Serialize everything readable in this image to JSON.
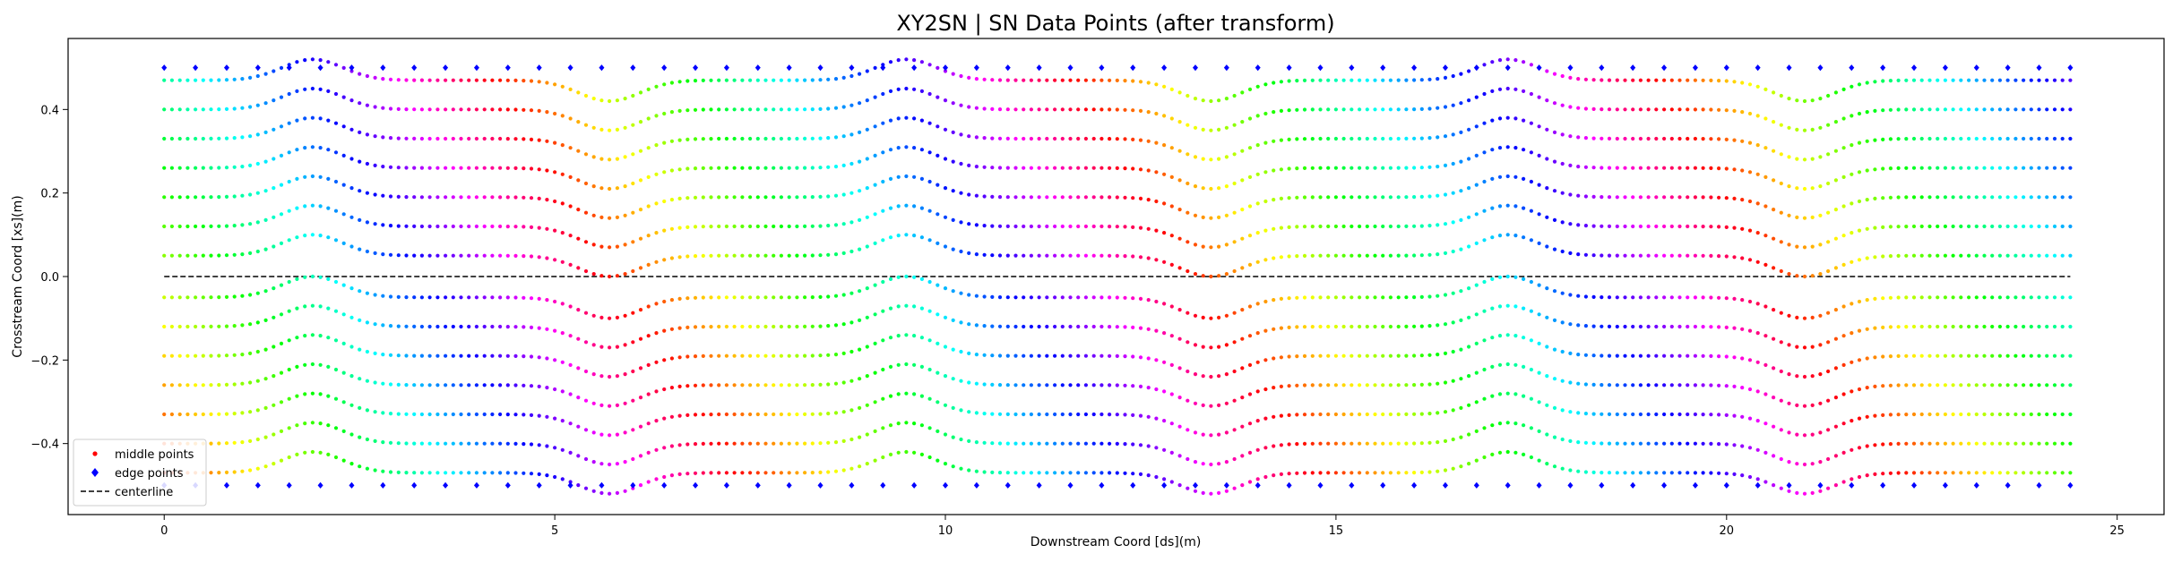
{
  "chart_data": {
    "type": "scatter",
    "title": "XY2SN | SN Data Points (after transform)",
    "xlabel": "Downstream Coord [ds](m)",
    "ylabel": "Crosstream Coord [xs](m)",
    "xlim": [
      -1.23,
      25.6
    ],
    "ylim": [
      -0.57,
      0.57
    ],
    "x_ticks": [
      0,
      5,
      10,
      15,
      20,
      25
    ],
    "x_tick_labels": [
      "0",
      "5",
      "10",
      "15",
      "20",
      "25"
    ],
    "y_ticks": [
      -0.4,
      -0.2,
      0.0,
      0.2,
      0.4
    ],
    "y_tick_labels": [
      "−0.4",
      "−0.2",
      "0.0",
      "0.2",
      "0.4"
    ],
    "grid": false,
    "legend": {
      "position": "lower-left",
      "entries": [
        {
          "label": "middle points",
          "marker": "dot",
          "color": "#ff0000"
        },
        {
          "label": "edge points",
          "marker": "diamond",
          "color": "#0000ff"
        },
        {
          "label": "centerline",
          "marker": "dashed-line",
          "color": "#000000"
        }
      ]
    },
    "series": [
      {
        "name": "middle points",
        "kind": "scatter",
        "colormap": "hsv (by point index)",
        "x_range": [
          0.0,
          24.4
        ],
        "x_step": 0.1,
        "y_levels": [
          -0.47,
          -0.4,
          -0.33,
          -0.26,
          -0.19,
          -0.12,
          -0.05,
          0.05,
          0.12,
          0.19,
          0.26,
          0.33,
          0.4,
          0.47
        ],
        "bump_amplitude": 0.05,
        "bends": [
          {
            "center": 1.9,
            "direction": 1
          },
          {
            "center": 5.7,
            "direction": -1
          },
          {
            "center": 9.5,
            "direction": 1
          },
          {
            "center": 13.4,
            "direction": -1
          },
          {
            "center": 17.2,
            "direction": 1
          },
          {
            "center": 21.0,
            "direction": -1
          }
        ]
      },
      {
        "name": "edge points",
        "kind": "scatter",
        "color": "#0000ff",
        "x_range": [
          0.0,
          24.4
        ],
        "x_step": 0.4,
        "y_values": [
          -0.5,
          0.5
        ]
      },
      {
        "name": "centerline",
        "kind": "line",
        "color": "#000000",
        "style": "dashed",
        "x": [
          0.0,
          24.4
        ],
        "y": [
          0.0,
          0.0
        ]
      }
    ]
  }
}
